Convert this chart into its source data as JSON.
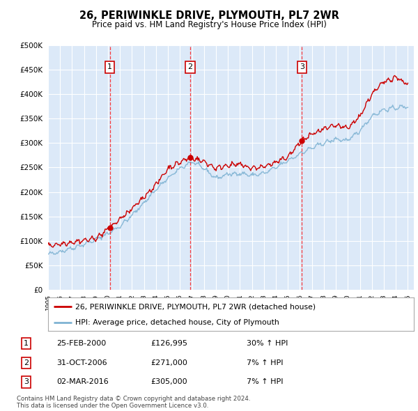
{
  "title": "26, PERIWINKLE DRIVE, PLYMOUTH, PL7 2WR",
  "subtitle": "Price paid vs. HM Land Registry's House Price Index (HPI)",
  "legend_entry1": "26, PERIWINKLE DRIVE, PLYMOUTH, PL7 2WR (detached house)",
  "legend_entry2": "HPI: Average price, detached house, City of Plymouth",
  "footer1": "Contains HM Land Registry data © Crown copyright and database right 2024.",
  "footer2": "This data is licensed under the Open Government Licence v3.0.",
  "transactions": [
    {
      "num": 1,
      "date": "25-FEB-2000",
      "price": "£126,995",
      "hpi": "30% ↑ HPI",
      "year": 2000.15
    },
    {
      "num": 2,
      "date": "31-OCT-2006",
      "price": "£271,000",
      "hpi": "7% ↑ HPI",
      "year": 2006.83
    },
    {
      "num": 3,
      "date": "02-MAR-2016",
      "price": "£305,000",
      "hpi": "7% ↑ HPI",
      "year": 2016.17
    }
  ],
  "transaction_prices": [
    126995,
    271000,
    305000
  ],
  "ylim": [
    0,
    500000
  ],
  "yticks": [
    0,
    50000,
    100000,
    150000,
    200000,
    250000,
    300000,
    350000,
    400000,
    450000,
    500000
  ],
  "xlim_start": 1995,
  "xlim_end": 2025.5,
  "plot_bg": "#dce9f8",
  "grid_color": "#ffffff",
  "red_line_color": "#cc0000",
  "blue_line_color": "#7fb3d3"
}
